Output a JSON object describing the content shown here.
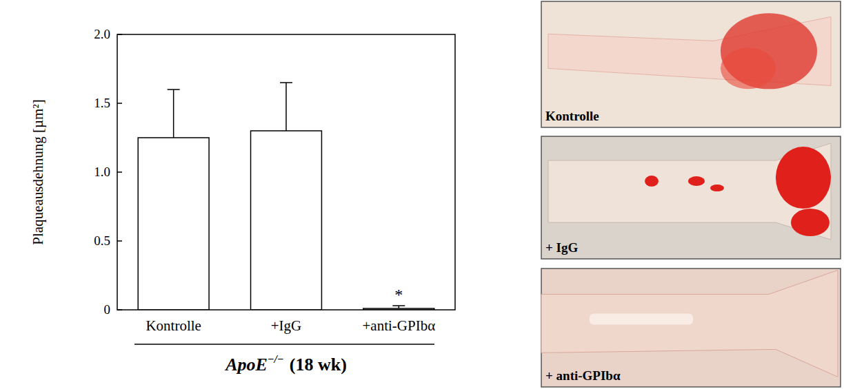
{
  "chart_data": {
    "type": "bar",
    "y_label": "Plaqueausdehnung [µm²]",
    "categories": [
      "Kontrolle",
      "+IgG",
      "+anti-GPIbα"
    ],
    "values": [
      1.25,
      1.3,
      0.01
    ],
    "errors": [
      0.35,
      0.35,
      0.02
    ],
    "color": "#ffffff",
    "ylim": [
      0,
      2
    ],
    "yticks": [
      0,
      0.5,
      {
        "value": 1,
        "label": "1.0"
      },
      1.5,
      {
        "value": 2,
        "label": "2.0"
      }
    ],
    "grid": false,
    "annotations": [
      {
        "text": "*",
        "category": "+anti-GPIbα"
      }
    ],
    "group_label": {
      "gene": "ApoE",
      "genotype": "−/−",
      "age": "(18 wk)"
    }
  },
  "images": [
    {
      "label": "Kontrolle"
    },
    {
      "label": "+ IgG"
    },
    {
      "label": "+ anti-GPIbα"
    }
  ]
}
